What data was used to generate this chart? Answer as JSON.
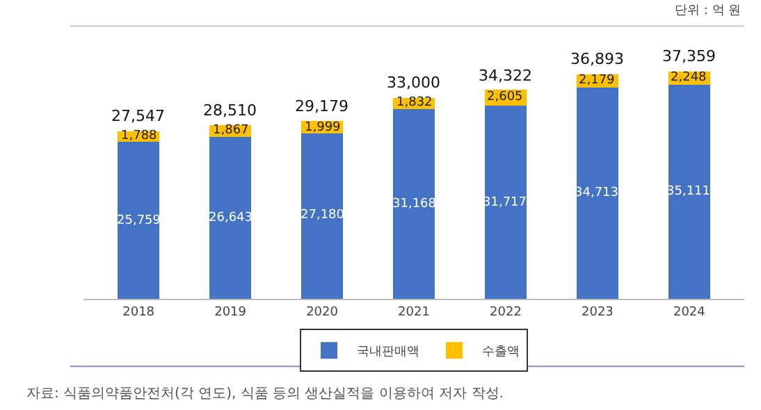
{
  "chart_data": {
    "type": "bar",
    "stacked": true,
    "categories": [
      "2018",
      "2019",
      "2020",
      "2021",
      "2022",
      "2023",
      "2024"
    ],
    "series": [
      {
        "name": "국내판매액",
        "color": "#4472c4",
        "values": [
          25759,
          26643,
          27180,
          31168,
          31717,
          34713,
          35111
        ],
        "value_labels": [
          "25,759",
          "26,643",
          "27,180",
          "31,168",
          "31,717",
          "34,713",
          "35,111"
        ]
      },
      {
        "name": "수출액",
        "color": "#ffc000",
        "values": [
          1788,
          1867,
          1999,
          1832,
          2605,
          2179,
          2248
        ],
        "value_labels": [
          "1,788",
          "1,867",
          "1,999",
          "1,832",
          "2,605",
          "2,179",
          "2,248"
        ]
      }
    ],
    "totals": [
      "27,547",
      "28,510",
      "29,179",
      "33,000",
      "34,322",
      "36,893",
      "37,359"
    ],
    "legend": "bottom",
    "grid": false,
    "annotations": [
      "단위 : 억 원",
      "자료: 식품의약품안전처(각 연도), 식품 등의 생산실적을 이용하여 저자 작성."
    ]
  }
}
